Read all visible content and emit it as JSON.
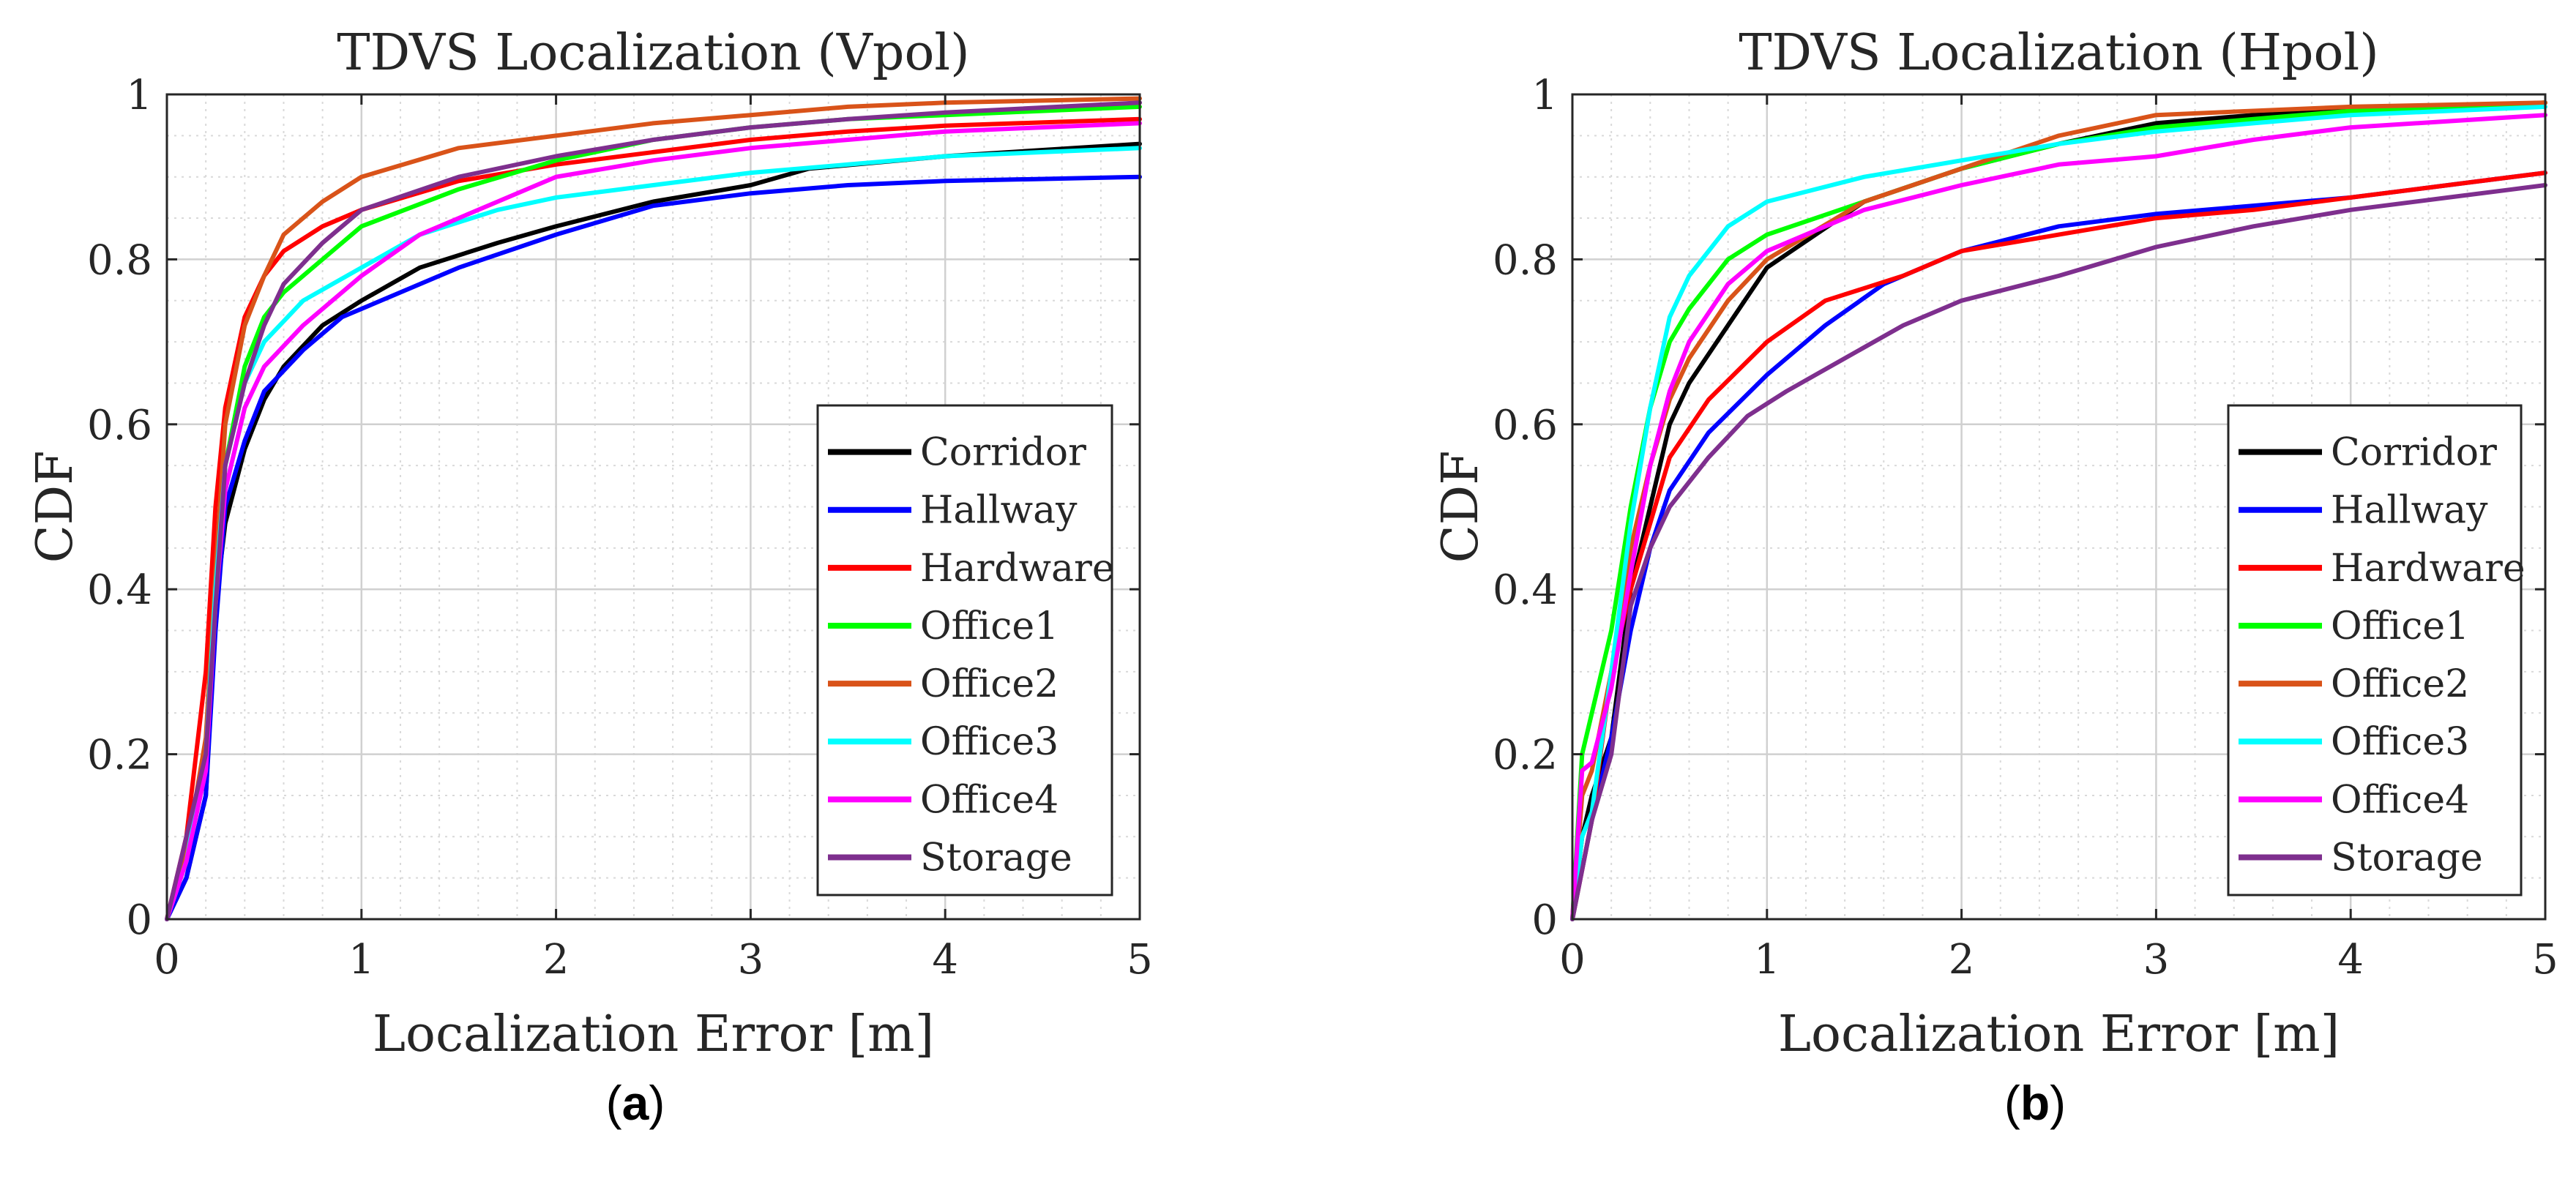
{
  "chart_data": [
    {
      "type": "line",
      "title": "TDVS Localization (Vpol)",
      "xlabel": "Localization Error [m]",
      "ylabel": "CDF",
      "xlim": [
        0,
        5
      ],
      "ylim": [
        0,
        1
      ],
      "xticks": [
        0,
        1,
        2,
        3,
        4,
        5
      ],
      "yticks": [
        0,
        0.2,
        0.4,
        0.6,
        0.8,
        1
      ],
      "xtick_labels": [
        "0",
        "1",
        "2",
        "3",
        "4",
        "5"
      ],
      "ytick_labels": [
        "0",
        "0.2",
        "0.4",
        "0.6",
        "0.8",
        "1"
      ],
      "grid": true,
      "minor_grid": true,
      "legend_position": "bottom-right",
      "caption": {
        "open": "(",
        "letter": "a",
        "close": ")"
      },
      "series": [
        {
          "name": "Corridor",
          "color": "#000000",
          "x": [
            0,
            0.1,
            0.2,
            0.25,
            0.3,
            0.4,
            0.5,
            0.6,
            0.8,
            1.0,
            1.3,
            1.7,
            2.0,
            2.5,
            3.0,
            3.3,
            4.0,
            5.0
          ],
          "y": [
            0,
            0.05,
            0.15,
            0.38,
            0.48,
            0.57,
            0.63,
            0.67,
            0.72,
            0.75,
            0.79,
            0.82,
            0.84,
            0.87,
            0.89,
            0.91,
            0.925,
            0.94
          ]
        },
        {
          "name": "Hallway",
          "color": "#0000ff",
          "x": [
            0,
            0.1,
            0.2,
            0.25,
            0.3,
            0.4,
            0.5,
            0.7,
            0.9,
            1.2,
            1.5,
            2.0,
            2.5,
            3.0,
            3.5,
            4.0,
            5.0
          ],
          "y": [
            0,
            0.05,
            0.15,
            0.35,
            0.5,
            0.58,
            0.64,
            0.69,
            0.73,
            0.76,
            0.79,
            0.83,
            0.865,
            0.88,
            0.89,
            0.895,
            0.9
          ]
        },
        {
          "name": "Hardware",
          "color": "#ff0000",
          "x": [
            0,
            0.1,
            0.2,
            0.25,
            0.3,
            0.4,
            0.5,
            0.6,
            0.8,
            1.0,
            1.5,
            2.0,
            2.5,
            3.0,
            3.5,
            4.0,
            5.0
          ],
          "y": [
            0,
            0.1,
            0.3,
            0.5,
            0.62,
            0.73,
            0.78,
            0.81,
            0.84,
            0.86,
            0.895,
            0.915,
            0.93,
            0.945,
            0.955,
            0.962,
            0.97
          ]
        },
        {
          "name": "Office1",
          "color": "#00ff00",
          "x": [
            0,
            0.1,
            0.2,
            0.25,
            0.3,
            0.4,
            0.5,
            0.6,
            0.8,
            1.0,
            1.5,
            2.0,
            2.5,
            3.0,
            3.5,
            4.0,
            5.0
          ],
          "y": [
            0,
            0.08,
            0.2,
            0.4,
            0.55,
            0.67,
            0.73,
            0.76,
            0.8,
            0.84,
            0.885,
            0.92,
            0.945,
            0.96,
            0.97,
            0.975,
            0.985
          ]
        },
        {
          "name": "Office2",
          "color": "#d95319",
          "x": [
            0,
            0.1,
            0.2,
            0.25,
            0.3,
            0.4,
            0.5,
            0.6,
            0.8,
            1.0,
            1.5,
            2.0,
            2.5,
            3.0,
            3.5,
            4.0,
            5.0
          ],
          "y": [
            0,
            0.08,
            0.22,
            0.42,
            0.6,
            0.72,
            0.78,
            0.83,
            0.87,
            0.9,
            0.935,
            0.95,
            0.965,
            0.975,
            0.985,
            0.99,
            0.995
          ]
        },
        {
          "name": "Office3",
          "color": "#00ffff",
          "x": [
            0,
            0.1,
            0.2,
            0.25,
            0.3,
            0.4,
            0.5,
            0.7,
            1.0,
            1.3,
            1.7,
            2.0,
            2.5,
            3.0,
            3.5,
            4.0,
            5.0
          ],
          "y": [
            0,
            0.07,
            0.2,
            0.4,
            0.55,
            0.65,
            0.7,
            0.75,
            0.79,
            0.83,
            0.86,
            0.875,
            0.89,
            0.905,
            0.915,
            0.925,
            0.935
          ]
        },
        {
          "name": "Office4",
          "color": "#ff00ff",
          "x": [
            0,
            0.1,
            0.2,
            0.25,
            0.3,
            0.4,
            0.5,
            0.7,
            1.0,
            1.3,
            1.7,
            2.0,
            2.5,
            3.0,
            3.5,
            4.0,
            5.0
          ],
          "y": [
            0,
            0.07,
            0.18,
            0.38,
            0.52,
            0.62,
            0.67,
            0.72,
            0.78,
            0.83,
            0.87,
            0.9,
            0.92,
            0.935,
            0.945,
            0.955,
            0.965
          ]
        },
        {
          "name": "Storage",
          "color": "#7e2f8e",
          "x": [
            0,
            0.1,
            0.2,
            0.25,
            0.3,
            0.4,
            0.5,
            0.6,
            0.8,
            1.0,
            1.5,
            2.0,
            2.5,
            3.0,
            3.5,
            4.0,
            5.0
          ],
          "y": [
            0,
            0.1,
            0.2,
            0.38,
            0.55,
            0.65,
            0.72,
            0.77,
            0.82,
            0.86,
            0.9,
            0.925,
            0.945,
            0.96,
            0.97,
            0.978,
            0.99
          ]
        }
      ]
    },
    {
      "type": "line",
      "title": "TDVS Localization (Hpol)",
      "xlabel": "Localization Error [m]",
      "ylabel": "CDF",
      "xlim": [
        0,
        5
      ],
      "ylim": [
        0,
        1
      ],
      "xticks": [
        0,
        1,
        2,
        3,
        4,
        5
      ],
      "yticks": [
        0,
        0.2,
        0.4,
        0.6,
        0.8,
        1
      ],
      "xtick_labels": [
        "0",
        "1",
        "2",
        "3",
        "4",
        "5"
      ],
      "ytick_labels": [
        "0",
        "0.2",
        "0.4",
        "0.6",
        "0.8",
        "1"
      ],
      "grid": true,
      "minor_grid": true,
      "legend_position": "bottom-right",
      "caption": {
        "open": "(",
        "letter": "b",
        "close": ")"
      },
      "series": [
        {
          "name": "Corridor",
          "color": "#000000",
          "x": [
            0,
            0.05,
            0.1,
            0.2,
            0.3,
            0.4,
            0.5,
            0.6,
            0.8,
            1.0,
            1.5,
            2.0,
            2.5,
            3.0,
            3.5,
            4.0,
            5.0
          ],
          "y": [
            0,
            0.1,
            0.15,
            0.22,
            0.4,
            0.5,
            0.6,
            0.65,
            0.72,
            0.79,
            0.87,
            0.91,
            0.94,
            0.965,
            0.975,
            0.98,
            0.99
          ]
        },
        {
          "name": "Hallway",
          "color": "#0000ff",
          "x": [
            0,
            0.1,
            0.2,
            0.3,
            0.4,
            0.5,
            0.7,
            1.0,
            1.3,
            1.6,
            2.0,
            2.5,
            3.0,
            3.5,
            4.0,
            4.5,
            5.0
          ],
          "y": [
            0,
            0.12,
            0.22,
            0.35,
            0.45,
            0.52,
            0.59,
            0.66,
            0.72,
            0.77,
            0.81,
            0.84,
            0.855,
            0.865,
            0.875,
            0.89,
            0.905
          ]
        },
        {
          "name": "Hardware",
          "color": "#ff0000",
          "x": [
            0,
            0.1,
            0.2,
            0.3,
            0.4,
            0.5,
            0.7,
            1.0,
            1.3,
            1.7,
            2.0,
            2.5,
            3.0,
            3.5,
            4.0,
            4.5,
            5.0
          ],
          "y": [
            0,
            0.12,
            0.3,
            0.4,
            0.48,
            0.56,
            0.63,
            0.7,
            0.75,
            0.78,
            0.81,
            0.83,
            0.85,
            0.86,
            0.875,
            0.89,
            0.905
          ]
        },
        {
          "name": "Office1",
          "color": "#00ff00",
          "x": [
            0,
            0.05,
            0.1,
            0.2,
            0.3,
            0.4,
            0.5,
            0.6,
            0.8,
            1.0,
            1.5,
            2.0,
            2.5,
            3.0,
            3.5,
            4.0,
            5.0
          ],
          "y": [
            0,
            0.2,
            0.25,
            0.35,
            0.5,
            0.62,
            0.7,
            0.74,
            0.8,
            0.83,
            0.87,
            0.91,
            0.94,
            0.96,
            0.97,
            0.98,
            0.99
          ]
        },
        {
          "name": "Office2",
          "color": "#d95319",
          "x": [
            0,
            0.05,
            0.1,
            0.2,
            0.3,
            0.4,
            0.5,
            0.6,
            0.8,
            1.0,
            1.5,
            2.0,
            2.5,
            3.0,
            3.5,
            4.0,
            5.0
          ],
          "y": [
            0,
            0.15,
            0.18,
            0.3,
            0.45,
            0.55,
            0.63,
            0.68,
            0.75,
            0.8,
            0.87,
            0.91,
            0.95,
            0.975,
            0.98,
            0.985,
            0.99
          ]
        },
        {
          "name": "Office3",
          "color": "#00ffff",
          "x": [
            0,
            0.05,
            0.1,
            0.2,
            0.3,
            0.4,
            0.5,
            0.6,
            0.8,
            1.0,
            1.5,
            2.0,
            2.5,
            3.0,
            3.5,
            4.0,
            5.0
          ],
          "y": [
            0,
            0.1,
            0.13,
            0.3,
            0.48,
            0.62,
            0.73,
            0.78,
            0.84,
            0.87,
            0.9,
            0.92,
            0.94,
            0.955,
            0.965,
            0.975,
            0.985
          ]
        },
        {
          "name": "Office4",
          "color": "#ff00ff",
          "x": [
            0,
            0.05,
            0.1,
            0.2,
            0.3,
            0.4,
            0.5,
            0.6,
            0.8,
            1.0,
            1.5,
            2.0,
            2.5,
            3.0,
            3.5,
            4.0,
            5.0
          ],
          "y": [
            0,
            0.18,
            0.19,
            0.28,
            0.42,
            0.55,
            0.64,
            0.7,
            0.77,
            0.81,
            0.86,
            0.89,
            0.915,
            0.925,
            0.945,
            0.96,
            0.975
          ]
        },
        {
          "name": "Storage",
          "color": "#7e2f8e",
          "x": [
            0,
            0.1,
            0.2,
            0.3,
            0.4,
            0.5,
            0.7,
            0.9,
            1.1,
            1.4,
            1.7,
            2.0,
            2.5,
            3.0,
            3.5,
            4.0,
            4.5,
            5.0
          ],
          "y": [
            0,
            0.12,
            0.2,
            0.38,
            0.45,
            0.5,
            0.56,
            0.61,
            0.64,
            0.68,
            0.72,
            0.75,
            0.78,
            0.815,
            0.84,
            0.86,
            0.875,
            0.89
          ]
        }
      ]
    }
  ]
}
